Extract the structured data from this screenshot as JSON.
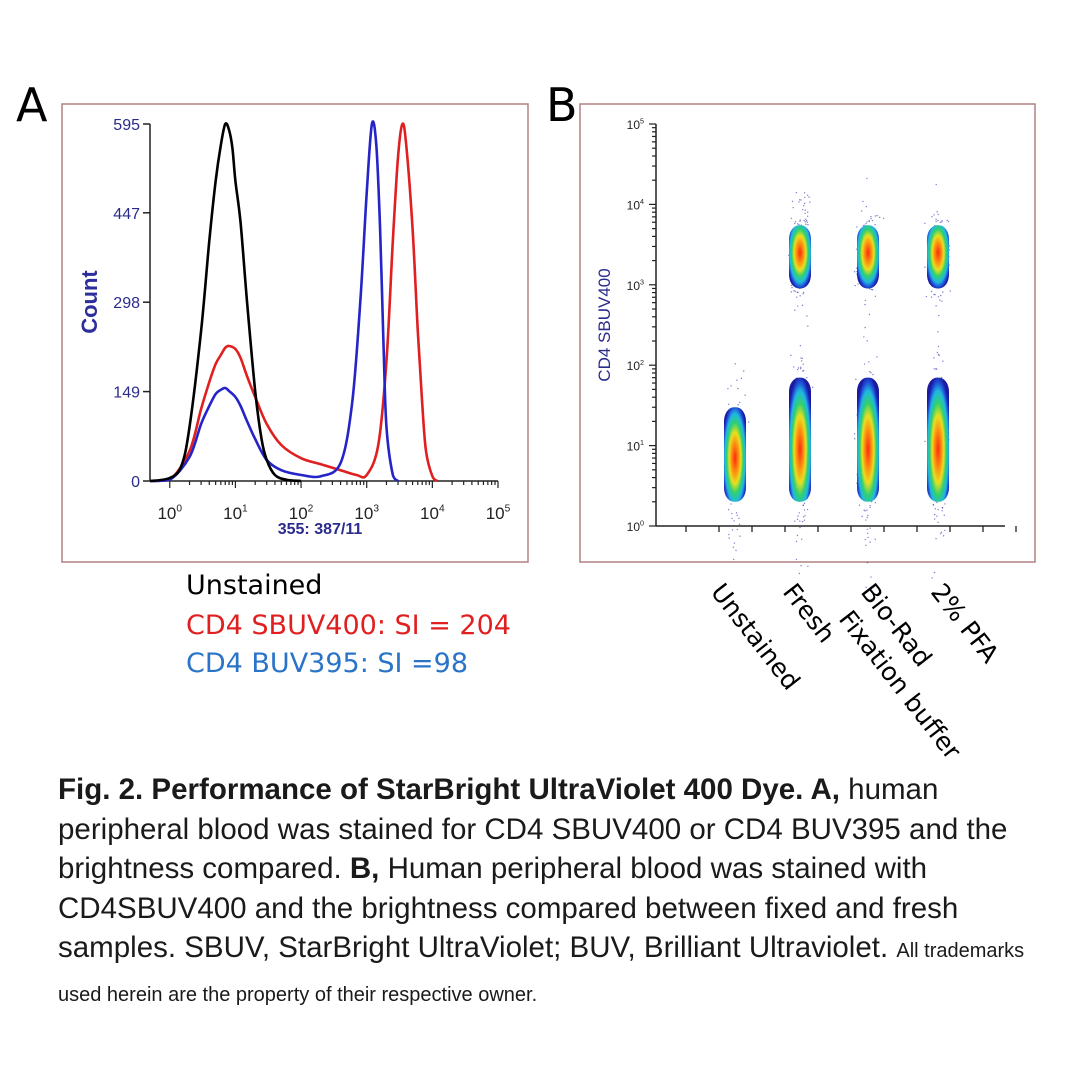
{
  "panels": {
    "a": "A",
    "b": "B"
  },
  "chart_data": [
    {
      "type": "line",
      "panel": "A",
      "ylabel": "Count",
      "xlabel": "355: 387/11",
      "xscale": "log",
      "xlim": [
        0.5,
        100000
      ],
      "ylim": [
        0,
        595
      ],
      "yticks": [
        "0",
        "149",
        "298",
        "447",
        "595"
      ],
      "xticks": [
        {
          "base": "10",
          "exp": "0"
        },
        {
          "base": "10",
          "exp": "1"
        },
        {
          "base": "10",
          "exp": "2"
        },
        {
          "base": "10",
          "exp": "3"
        },
        {
          "base": "10",
          "exp": "4"
        },
        {
          "base": "10",
          "exp": "5"
        }
      ],
      "series": [
        {
          "name": "Unstained",
          "color": "#000000",
          "x": [
            0.5,
            1,
            1.5,
            2,
            3,
            4,
            5,
            6,
            7,
            8,
            9,
            10,
            12,
            15,
            20,
            25,
            30,
            40,
            60,
            100
          ],
          "y": [
            0,
            5,
            25,
            90,
            250,
            400,
            500,
            560,
            595,
            585,
            555,
            500,
            430,
            300,
            150,
            70,
            35,
            10,
            2,
            0
          ]
        },
        {
          "name": "CD4 SBUV400",
          "color": "#e02020",
          "x": [
            0.5,
            1,
            2,
            3,
            4,
            5,
            6,
            7,
            8,
            10,
            12,
            15,
            20,
            30,
            50,
            100,
            200,
            400,
            700,
            1000,
            1500,
            2000,
            2500,
            3000,
            3500,
            4000,
            5000,
            6000,
            7000,
            8000,
            10000,
            12000
          ],
          "y": [
            0,
            2,
            50,
            120,
            165,
            195,
            210,
            222,
            225,
            220,
            205,
            175,
            140,
            95,
            60,
            38,
            28,
            18,
            10,
            10,
            60,
            200,
            400,
            540,
            595,
            560,
            420,
            250,
            130,
            50,
            8,
            0
          ]
        },
        {
          "name": "CD4 BUV395",
          "color": "#2424c8",
          "x": [
            0.5,
            1,
            2,
            3,
            4,
            5,
            6,
            7,
            8,
            10,
            12,
            15,
            20,
            30,
            50,
            100,
            200,
            400,
            600,
            800,
            1000,
            1200,
            1400,
            1600,
            1800,
            2000,
            2500,
            3000
          ],
          "y": [
            0,
            2,
            40,
            95,
            125,
            145,
            152,
            155,
            150,
            140,
            125,
            100,
            70,
            35,
            18,
            10,
            8,
            30,
            130,
            300,
            480,
            595,
            560,
            420,
            230,
            90,
            10,
            0
          ]
        }
      ]
    },
    {
      "type": "scatter",
      "panel": "B",
      "ylabel": "CD4 SBUV400",
      "yscale": "log",
      "ylim": [
        1,
        100000
      ],
      "yticks": [
        {
          "base": "10",
          "exp": "0"
        },
        {
          "base": "10",
          "exp": "1"
        },
        {
          "base": "10",
          "exp": "2"
        },
        {
          "base": "10",
          "exp": "3"
        },
        {
          "base": "10",
          "exp": "4"
        },
        {
          "base": "10",
          "exp": "5"
        }
      ],
      "categories": [
        "Unstained",
        "Fresh",
        "Bio-Rad Fixation buffer",
        "2% PFA"
      ],
      "populations": [
        {
          "category": "Unstained",
          "median": 7,
          "span": [
            2,
            30
          ]
        },
        {
          "category": "Fresh",
          "median": 9,
          "span": [
            2,
            70
          ]
        },
        {
          "category": "Fresh",
          "median": 2500,
          "span": [
            900,
            5500
          ]
        },
        {
          "category": "Bio-Rad Fixation buffer",
          "median": 9,
          "span": [
            2,
            70
          ]
        },
        {
          "category": "Bio-Rad Fixation buffer",
          "median": 2500,
          "span": [
            900,
            5500
          ]
        },
        {
          "category": "2% PFA",
          "median": 9,
          "span": [
            2,
            70
          ]
        },
        {
          "category": "2% PFA",
          "median": 2500,
          "span": [
            900,
            5500
          ]
        }
      ]
    }
  ],
  "categories_display": {
    "unstained": "Unstained",
    "fresh": "Fresh",
    "biorad_line1": "Bio-Rad",
    "biorad_line2": "Fixation buffer",
    "pfa": "2% PFA"
  },
  "legend": {
    "unstained": "Unstained",
    "sbuv400": "CD4 SBUV400: SI = 204",
    "buv395": "CD4 BUV395: SI =98",
    "colors": {
      "unstained": "#000000",
      "sbuv400": "#e02020",
      "buv395": "#2a74c8"
    }
  },
  "caption": {
    "bold1": "Fig. 2. Performance of StarBright UltraViolet 400 Dye. A,",
    "text1": " human peripheral blood was stained for CD4 SBUV400 or CD4 BUV395 and the brightness compared. ",
    "bold2": "B,",
    "text2": " Human peripheral blood was stained with CD4SBUV400 and the brightness compared between fixed and fresh samples. SBUV, StarBright UltraViolet; BUV, Brilliant Ultraviolet. ",
    "small": "All trademarks used herein are the property of their respective owner."
  }
}
